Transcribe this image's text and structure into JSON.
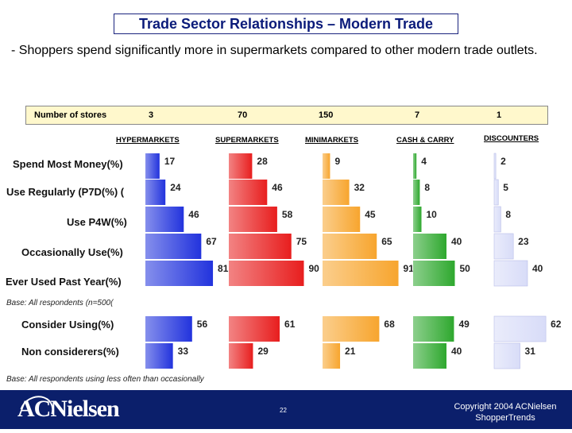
{
  "title": "Trade Sector Relationships – Modern Trade",
  "subtitle": "- Shoppers spend significantly more in supermarkets compared to other modern trade outlets.",
  "stores": {
    "label": "Number of stores",
    "values": [
      "3",
      "70",
      "150",
      "7",
      "1"
    ]
  },
  "chart_data": {
    "type": "bar",
    "orientation": "horizontal",
    "categories": [
      "HYPERMARKETS",
      "SUPERMARKETS",
      "MINIMARKETS",
      "CASH & CARRY",
      "DISCOUNTERS"
    ],
    "colors": [
      "#2233dd",
      "#e81e1e",
      "#f7a52e",
      "#2ea82e",
      "#d8dcf8"
    ],
    "groups": [
      {
        "rows": [
          "Spend Most Money(%)",
          "Use Regularly (P7D(%) (",
          "Use P4W(%)",
          "Occasionally Use(%)",
          "Ever Used Past Year(%)"
        ],
        "values": [
          [
            17,
            24,
            46,
            67,
            81
          ],
          [
            28,
            46,
            58,
            75,
            90
          ],
          [
            9,
            32,
            45,
            65,
            91
          ],
          [
            4,
            8,
            10,
            40,
            50
          ],
          [
            2,
            5,
            8,
            23,
            40
          ]
        ],
        "base": "Base: All respondents (n=500("
      },
      {
        "rows": [
          "Consider Using(%)",
          "Non considerers(%)"
        ],
        "values": [
          [
            56,
            33
          ],
          [
            61,
            29
          ],
          [
            68,
            21
          ],
          [
            49,
            40
          ],
          [
            62,
            31
          ]
        ],
        "base": "Base: All respondents using less often than occasionally"
      }
    ]
  },
  "footer": {
    "logo": "ACNielsen",
    "page": "22",
    "copyright_line1": "Copyright 2004 ACNielsen",
    "copyright_line2": "ShopperTrends"
  }
}
